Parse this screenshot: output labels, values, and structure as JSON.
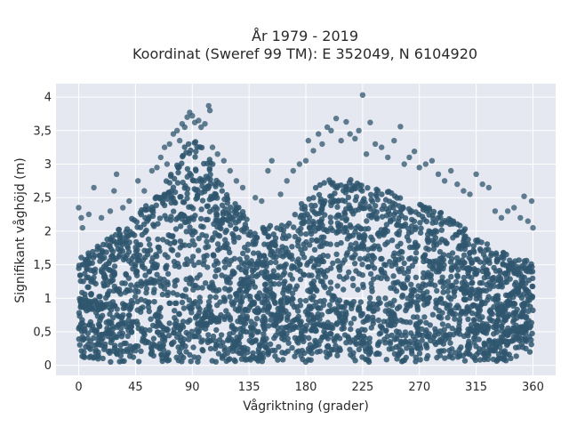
{
  "chart_data": {
    "type": "scatter",
    "title": "År 1979 - 2019",
    "subtitle": "Koordinat (Sweref 99 TM): E 352049, N 6104920",
    "xlabel": "Vågriktning (grader)",
    "ylabel": "Signifikant våghöjd (m)",
    "xlim": [
      -18,
      378
    ],
    "ylim": [
      -0.15,
      4.2
    ],
    "x_ticks": [
      0,
      45,
      90,
      135,
      180,
      225,
      270,
      315,
      360
    ],
    "x_tick_labels": [
      "0",
      "45",
      "90",
      "135",
      "180",
      "225",
      "270",
      "315",
      "360"
    ],
    "y_ticks": [
      0,
      0.5,
      1,
      1.5,
      2,
      2.5,
      3,
      3.5,
      4
    ],
    "y_tick_labels": [
      "0",
      "0,5",
      "1",
      "1,5",
      "2",
      "2,5",
      "3",
      "3,5",
      "4"
    ],
    "grid": true,
    "marker_color": "#2f566e",
    "plot_background": "#e5e8f0",
    "envelope": {
      "x": [
        0,
        10,
        20,
        30,
        45,
        60,
        70,
        80,
        85,
        90,
        95,
        100,
        105,
        110,
        120,
        130,
        140,
        150,
        160,
        170,
        180,
        190,
        200,
        210,
        220,
        225,
        230,
        240,
        250,
        260,
        270,
        280,
        290,
        300,
        310,
        320,
        330,
        340,
        350,
        360
      ],
      "ymax": [
        1.6,
        1.75,
        1.85,
        2.0,
        2.25,
        2.5,
        2.8,
        3.1,
        3.3,
        3.4,
        3.35,
        3.3,
        3.1,
        2.8,
        2.5,
        2.3,
        2.15,
        2.1,
        2.1,
        2.25,
        2.55,
        2.7,
        2.8,
        2.8,
        2.75,
        2.75,
        2.7,
        2.65,
        2.55,
        2.45,
        2.4,
        2.35,
        2.25,
        2.15,
        2.0,
        1.85,
        1.75,
        1.65,
        1.6,
        1.55
      ],
      "ymin": 0.05
    },
    "outliers": [
      {
        "x": 0,
        "y": 2.35
      },
      {
        "x": 2,
        "y": 2.2
      },
      {
        "x": 3,
        "y": 2.05
      },
      {
        "x": 8,
        "y": 2.25
      },
      {
        "x": 12,
        "y": 2.65
      },
      {
        "x": 18,
        "y": 2.2
      },
      {
        "x": 25,
        "y": 2.3
      },
      {
        "x": 28,
        "y": 2.6
      },
      {
        "x": 30,
        "y": 2.85
      },
      {
        "x": 35,
        "y": 2.35
      },
      {
        "x": 40,
        "y": 2.45
      },
      {
        "x": 47,
        "y": 2.75
      },
      {
        "x": 52,
        "y": 2.6
      },
      {
        "x": 58,
        "y": 2.9
      },
      {
        "x": 62,
        "y": 2.95
      },
      {
        "x": 65,
        "y": 3.1
      },
      {
        "x": 68,
        "y": 3.25
      },
      {
        "x": 70,
        "y": 3.0
      },
      {
        "x": 72,
        "y": 3.3
      },
      {
        "x": 75,
        "y": 3.45
      },
      {
        "x": 78,
        "y": 3.5
      },
      {
        "x": 80,
        "y": 3.35
      },
      {
        "x": 82,
        "y": 3.6
      },
      {
        "x": 84,
        "y": 3.55
      },
      {
        "x": 86,
        "y": 3.7
      },
      {
        "x": 88,
        "y": 3.77
      },
      {
        "x": 90,
        "y": 3.72
      },
      {
        "x": 92,
        "y": 3.62
      },
      {
        "x": 95,
        "y": 3.65
      },
      {
        "x": 97,
        "y": 3.55
      },
      {
        "x": 100,
        "y": 3.6
      },
      {
        "x": 103,
        "y": 3.87
      },
      {
        "x": 104,
        "y": 3.8
      },
      {
        "x": 106,
        "y": 3.25
      },
      {
        "x": 110,
        "y": 3.15
      },
      {
        "x": 115,
        "y": 3.05
      },
      {
        "x": 120,
        "y": 2.9
      },
      {
        "x": 125,
        "y": 2.75
      },
      {
        "x": 130,
        "y": 2.65
      },
      {
        "x": 140,
        "y": 2.5
      },
      {
        "x": 145,
        "y": 2.45
      },
      {
        "x": 150,
        "y": 2.9
      },
      {
        "x": 153,
        "y": 3.05
      },
      {
        "x": 160,
        "y": 2.55
      },
      {
        "x": 165,
        "y": 2.75
      },
      {
        "x": 170,
        "y": 2.9
      },
      {
        "x": 175,
        "y": 3.0
      },
      {
        "x": 180,
        "y": 3.05
      },
      {
        "x": 182,
        "y": 3.35
      },
      {
        "x": 186,
        "y": 3.2
      },
      {
        "x": 190,
        "y": 3.45
      },
      {
        "x": 193,
        "y": 3.3
      },
      {
        "x": 197,
        "y": 3.55
      },
      {
        "x": 200,
        "y": 3.5
      },
      {
        "x": 204,
        "y": 3.68
      },
      {
        "x": 208,
        "y": 3.35
      },
      {
        "x": 212,
        "y": 3.63
      },
      {
        "x": 215,
        "y": 3.45
      },
      {
        "x": 219,
        "y": 3.38
      },
      {
        "x": 222,
        "y": 3.5
      },
      {
        "x": 225,
        "y": 4.03
      },
      {
        "x": 228,
        "y": 3.15
      },
      {
        "x": 231,
        "y": 3.62
      },
      {
        "x": 235,
        "y": 3.3
      },
      {
        "x": 240,
        "y": 3.25
      },
      {
        "x": 245,
        "y": 3.1
      },
      {
        "x": 250,
        "y": 3.35
      },
      {
        "x": 255,
        "y": 3.56
      },
      {
        "x": 258,
        "y": 3.0
      },
      {
        "x": 262,
        "y": 3.1
      },
      {
        "x": 266,
        "y": 3.19
      },
      {
        "x": 270,
        "y": 2.95
      },
      {
        "x": 275,
        "y": 3.0
      },
      {
        "x": 280,
        "y": 3.05
      },
      {
        "x": 285,
        "y": 2.85
      },
      {
        "x": 290,
        "y": 2.75
      },
      {
        "x": 295,
        "y": 2.9
      },
      {
        "x": 300,
        "y": 2.7
      },
      {
        "x": 305,
        "y": 2.6
      },
      {
        "x": 310,
        "y": 2.55
      },
      {
        "x": 315,
        "y": 2.85
      },
      {
        "x": 320,
        "y": 2.7
      },
      {
        "x": 325,
        "y": 2.65
      },
      {
        "x": 330,
        "y": 2.3
      },
      {
        "x": 335,
        "y": 2.2
      },
      {
        "x": 340,
        "y": 2.3
      },
      {
        "x": 345,
        "y": 2.35
      },
      {
        "x": 350,
        "y": 2.2
      },
      {
        "x": 353,
        "y": 2.52
      },
      {
        "x": 356,
        "y": 2.15
      },
      {
        "x": 359,
        "y": 2.45
      },
      {
        "x": 360,
        "y": 2.05
      }
    ]
  }
}
